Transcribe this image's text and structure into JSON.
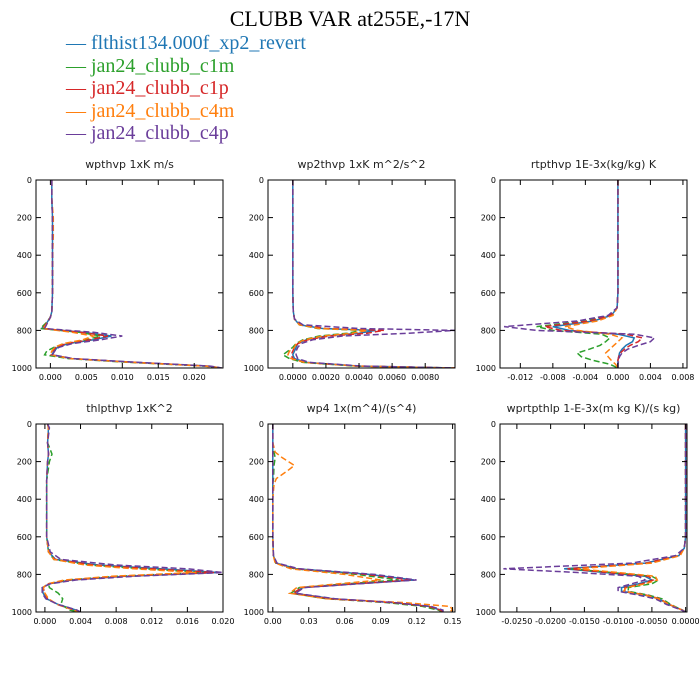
{
  "title": "CLUBB VAR at255E,-17N",
  "legend": [
    {
      "label": "flthist134.000f_xp2_revert",
      "color": "#1f77b4"
    },
    {
      "label": "jan24_clubb_c1m",
      "color": "#2ca02c"
    },
    {
      "label": "jan24_clubb_c1p",
      "color": "#d62728"
    },
    {
      "label": "jan24_clubb_c4m",
      "color": "#ff7f0e"
    },
    {
      "label": "jan24_clubb_c4p",
      "color": "#6a3d9a"
    }
  ],
  "chart_data": [
    {
      "type": "line",
      "title": "wpthvp   1xK m/s",
      "xlim": [
        -0.002,
        0.024
      ],
      "xticks": [
        0,
        0.005,
        0.01,
        0.015,
        0.02
      ],
      "xtick_labels": [
        "0.000",
        "0.005",
        "0.010",
        "0.015",
        "0.020"
      ],
      "ylim": [
        1000,
        0
      ],
      "yticks": [
        0,
        200,
        400,
        600,
        800,
        1000
      ],
      "y": [
        0,
        100,
        200,
        300,
        400,
        500,
        600,
        700,
        730,
        760,
        790,
        810,
        830,
        850,
        870,
        890,
        910,
        930,
        950,
        970,
        990,
        1000
      ],
      "series": [
        {
          "values": [
            0.0002,
            0.0002,
            0.0003,
            0.0003,
            0.0003,
            0.0003,
            0.0003,
            0.0002,
            0.0,
            -0.0005,
            -0.0012,
            0.0045,
            0.0085,
            0.006,
            0.0025,
            0.001,
            0.0005,
            0.0002,
            0.003,
            0.012,
            0.022,
            0.0238
          ]
        },
        {
          "values": [
            0.0002,
            0.0002,
            0.0003,
            0.0003,
            0.0003,
            0.0003,
            0.0003,
            0.0002,
            0.0,
            -0.0006,
            -0.0014,
            0.004,
            0.007,
            0.005,
            0.002,
            0.0005,
            -0.0005,
            -0.0008,
            0.0025,
            0.011,
            0.0215,
            0.0238
          ]
        },
        {
          "values": [
            0.0002,
            0.0002,
            0.0003,
            0.0003,
            0.0003,
            0.0003,
            0.0003,
            0.0002,
            0.0,
            -0.0005,
            -0.0011,
            0.0042,
            0.008,
            0.0055,
            0.0022,
            0.0008,
            0.0003,
            0.0001,
            0.003,
            0.0118,
            0.0218,
            0.0238
          ]
        },
        {
          "values": [
            0.0002,
            0.0002,
            0.0004,
            0.0004,
            0.0003,
            0.0003,
            0.0003,
            0.0002,
            0.0,
            -0.0004,
            -0.001,
            0.003,
            0.006,
            0.0045,
            0.0018,
            0.0006,
            0.0002,
            0.0,
            0.0028,
            0.0115,
            0.0215,
            0.0238
          ]
        },
        {
          "values": [
            0.0002,
            0.0002,
            0.0003,
            0.0003,
            0.0003,
            0.0003,
            0.0003,
            0.0002,
            0.0,
            -0.0004,
            -0.0008,
            0.006,
            0.01,
            0.007,
            0.003,
            0.0012,
            0.0006,
            0.0003,
            0.0032,
            0.0122,
            0.0222,
            0.0238
          ]
        }
      ]
    },
    {
      "type": "line",
      "title": "wp2thvp   1xK m^2/s^2",
      "xlim": [
        -0.0015,
        0.0098
      ],
      "xticks": [
        0,
        0.002,
        0.004,
        0.006,
        0.008
      ],
      "xtick_labels": [
        "0.0000",
        "0.0020",
        "0.0040",
        "0.0060",
        "0.0080"
      ],
      "ylim": [
        1000,
        0
      ],
      "yticks": [
        0,
        200,
        400,
        600,
        800,
        1000
      ],
      "y": [
        0,
        100,
        200,
        300,
        400,
        500,
        600,
        700,
        740,
        770,
        790,
        800,
        815,
        830,
        850,
        870,
        890,
        910,
        930,
        950,
        970,
        990,
        1000
      ],
      "series": [
        {
          "values": [
            0,
            0,
            0,
            0,
            0,
            0,
            0,
            3e-05,
            0.0001,
            0.0004,
            0.0018,
            0.005,
            0.004,
            0.002,
            0.0008,
            0.0003,
            0.0002,
            0.0001,
            0.0,
            0.0001,
            0.0008,
            0.004,
            0.0098
          ]
        },
        {
          "values": [
            0,
            0,
            0,
            0,
            0,
            0,
            0,
            3e-05,
            0.0001,
            0.0004,
            0.0015,
            0.0042,
            0.0033,
            0.0016,
            0.0006,
            0.0002,
            0.0,
            -0.0003,
            -0.0006,
            -0.0002,
            0.0006,
            0.0038,
            0.0098
          ]
        },
        {
          "values": [
            0,
            0,
            0,
            0,
            0,
            0,
            0,
            3e-05,
            0.0001,
            0.0005,
            0.002,
            0.0055,
            0.0045,
            0.0022,
            0.0009,
            0.0003,
            0.0001,
            0.0,
            -0.0001,
            0.0,
            0.0007,
            0.004,
            0.0098
          ]
        },
        {
          "values": [
            0,
            0,
            0,
            0,
            0,
            0,
            0,
            3e-05,
            0.0001,
            0.0004,
            0.0016,
            0.0045,
            0.0036,
            0.0018,
            0.0007,
            0.0002,
            0.0001,
            -0.0002,
            -0.0003,
            -0.0001,
            0.0007,
            0.0039,
            0.0098
          ]
        },
        {
          "values": [
            0,
            0,
            0,
            0,
            0,
            0,
            0,
            3e-05,
            0.0001,
            0.0006,
            0.004,
            0.0098,
            0.007,
            0.003,
            0.0012,
            0.0005,
            0.0003,
            0.0002,
            0.0002,
            0.0003,
            0.001,
            0.0042,
            0.0098
          ]
        }
      ]
    },
    {
      "type": "line",
      "title": "rtpthvp   1E-3x(kg/kg) K",
      "xlim": [
        -0.0145,
        0.0085
      ],
      "xticks": [
        -0.012,
        -0.008,
        -0.004,
        0,
        0.004,
        0.008
      ],
      "xtick_labels": [
        "-0.012",
        "-0.008",
        "-0.004",
        "0.000",
        "0.004",
        "0.008"
      ],
      "ylim": [
        1000,
        0
      ],
      "yticks": [
        0,
        200,
        400,
        600,
        800,
        1000
      ],
      "y": [
        0,
        100,
        200,
        300,
        400,
        500,
        600,
        680,
        720,
        750,
        780,
        800,
        820,
        840,
        860,
        880,
        900,
        920,
        940,
        960,
        980,
        1000
      ],
      "series": [
        {
          "values": [
            0,
            0,
            0,
            0,
            0,
            0,
            0,
            -0.0001,
            -0.0008,
            -0.003,
            -0.008,
            -0.006,
            0.0,
            0.002,
            0.0018,
            0.001,
            0.0005,
            0.0002,
            0.0001,
            0.0,
            0.0,
            0.0
          ]
        },
        {
          "values": [
            0,
            0,
            0,
            0,
            0,
            0,
            0,
            -0.0001,
            -0.001,
            -0.004,
            -0.01,
            -0.008,
            -0.002,
            -0.001,
            -0.0015,
            -0.0022,
            -0.0035,
            -0.005,
            -0.0045,
            -0.003,
            -0.001,
            0.0
          ]
        },
        {
          "values": [
            0,
            0,
            0,
            0,
            0,
            0,
            0,
            -0.0001,
            -0.0009,
            -0.0035,
            -0.009,
            -0.007,
            0.001,
            0.003,
            0.0025,
            0.0015,
            0.0008,
            0.0003,
            0.0001,
            0.0,
            0.0,
            0.0
          ]
        },
        {
          "values": [
            0,
            0,
            0,
            0,
            0,
            0,
            0,
            -0.0001,
            -0.0006,
            -0.0025,
            -0.0065,
            -0.005,
            -0.001,
            0.0005,
            0.0,
            -0.0005,
            -0.001,
            -0.0015,
            -0.0012,
            -0.0008,
            -0.0003,
            0.0
          ]
        },
        {
          "values": [
            0,
            0,
            0,
            0,
            0,
            0,
            0,
            -0.0001,
            -0.0012,
            -0.005,
            -0.014,
            -0.01,
            0.002,
            0.0045,
            0.004,
            0.0025,
            0.0012,
            0.0005,
            0.0002,
            0.0001,
            0.0,
            0.0
          ]
        }
      ]
    },
    {
      "type": "line",
      "title": "thlpthvp   1xK^2",
      "xlim": [
        -0.001,
        0.02
      ],
      "xticks": [
        0,
        0.004,
        0.008,
        0.012,
        0.016,
        0.02
      ],
      "xtick_labels": [
        "0.000",
        "0.004",
        "0.008",
        "0.012",
        "0.016",
        "0.020"
      ],
      "ylim": [
        1000,
        0
      ],
      "yticks": [
        0,
        200,
        400,
        600,
        800,
        1000
      ],
      "y": [
        0,
        20,
        100,
        160,
        200,
        300,
        400,
        500,
        600,
        680,
        720,
        750,
        770,
        790,
        810,
        830,
        850,
        870,
        900,
        930,
        960,
        990,
        1000
      ],
      "series": [
        {
          "values": [
            0.0003,
            0.0004,
            0.0003,
            0.0004,
            0.0003,
            0.0002,
            0.0002,
            0.0002,
            0.0002,
            0.0004,
            0.0012,
            0.006,
            0.013,
            0.0195,
            0.009,
            0.003,
            0.0005,
            -0.0003,
            -0.0002,
            0.0002,
            0.0015,
            0.0035,
            0.004
          ]
        },
        {
          "values": [
            0.0003,
            0.0004,
            0.0003,
            0.0008,
            0.0005,
            0.0002,
            0.0002,
            0.0002,
            0.0002,
            0.0004,
            0.001,
            0.005,
            0.011,
            0.018,
            0.008,
            0.0025,
            0.0004,
            0.0005,
            0.0015,
            0.002,
            0.0018,
            0.0028,
            0.004
          ]
        },
        {
          "values": [
            0.0003,
            0.0004,
            0.0003,
            0.0004,
            0.0003,
            0.0002,
            0.0002,
            0.0002,
            0.0002,
            0.0004,
            0.0011,
            0.0055,
            0.012,
            0.019,
            0.0085,
            0.0028,
            0.0004,
            -0.0002,
            0.0,
            0.0003,
            0.0014,
            0.0033,
            0.004
          ]
        },
        {
          "values": [
            0.0003,
            0.0004,
            0.0003,
            0.0004,
            0.0003,
            0.0002,
            0.0002,
            0.0002,
            0.0002,
            0.0004,
            0.001,
            0.0045,
            0.01,
            0.017,
            0.0075,
            0.0022,
            0.0003,
            -0.0002,
            0.0,
            0.0004,
            0.0014,
            0.0032,
            0.004
          ]
        },
        {
          "values": [
            0.0003,
            0.0005,
            0.0003,
            0.0004,
            0.0003,
            0.0002,
            0.0002,
            0.0002,
            0.0002,
            0.0006,
            0.0018,
            0.008,
            0.016,
            0.02,
            0.01,
            0.0035,
            0.0006,
            -0.0003,
            -0.0003,
            0.0001,
            0.0015,
            0.0036,
            0.004
          ]
        }
      ]
    },
    {
      "type": "line",
      "title": "wp4   1x(m^4)/(s^4)",
      "xlim": [
        -0.004,
        0.152
      ],
      "xticks": [
        0,
        0.03,
        0.06,
        0.09,
        0.12,
        0.15
      ],
      "xtick_labels": [
        "0.00",
        "0.03",
        "0.06",
        "0.09",
        "0.12",
        "0.15"
      ],
      "ylim": [
        1000,
        0
      ],
      "yticks": [
        0,
        200,
        400,
        600,
        800,
        1000
      ],
      "y": [
        0,
        100,
        150,
        180,
        220,
        250,
        290,
        320,
        400,
        500,
        600,
        700,
        740,
        770,
        800,
        830,
        850,
        870,
        900,
        930,
        950,
        970,
        990,
        1000
      ],
      "series": [
        {
          "values": [
            0,
            0,
            0,
            0,
            0,
            0,
            0,
            0,
            0,
            0,
            0,
            0.0005,
            0.003,
            0.02,
            0.08,
            0.118,
            0.07,
            0.025,
            0.018,
            0.05,
            0.1,
            0.13,
            0.14,
            0.142
          ]
        },
        {
          "values": [
            0,
            0,
            0.001,
            0.002,
            0.001,
            0.0008,
            0.0006,
            0,
            0,
            0,
            0,
            0.0004,
            0.0025,
            0.018,
            0.07,
            0.105,
            0.062,
            0.022,
            0.015,
            0.045,
            0.095,
            0.125,
            0.138,
            0.142
          ]
        },
        {
          "values": [
            0,
            0,
            0,
            0,
            0,
            0,
            0,
            0,
            0,
            0,
            0,
            0.0005,
            0.003,
            0.02,
            0.078,
            0.115,
            0.068,
            0.024,
            0.017,
            0.048,
            0.1,
            0.13,
            0.14,
            0.142
          ]
        },
        {
          "values": [
            0,
            0,
            0.002,
            0.008,
            0.018,
            0.012,
            0.003,
            0.001,
            0,
            0,
            0,
            0.0004,
            0.002,
            0.015,
            0.06,
            0.09,
            0.055,
            0.02,
            0.014,
            0.045,
            0.11,
            0.148,
            0.15,
            0.146
          ]
        },
        {
          "values": [
            0,
            0,
            0,
            0,
            0,
            0,
            0,
            0,
            0,
            0,
            0,
            0.0006,
            0.0035,
            0.022,
            0.085,
            0.12,
            0.072,
            0.026,
            0.019,
            0.052,
            0.102,
            0.132,
            0.142,
            0.142
          ]
        }
      ]
    },
    {
      "type": "line",
      "title": "wprtpthlp   1-E-3x(m kg K)/(s kg)",
      "xlim": [
        -0.0275,
        0.0002
      ],
      "xticks": [
        -0.025,
        -0.02,
        -0.015,
        -0.01,
        -0.005,
        0
      ],
      "xtick_labels": [
        "-0.0250",
        "-0.0200",
        "-0.0150",
        "-0.0100",
        "-0.0050",
        "0.0000"
      ],
      "ylim": [
        1000,
        0
      ],
      "yticks": [
        0,
        200,
        400,
        600,
        800,
        1000
      ],
      "y": [
        0,
        100,
        200,
        300,
        400,
        500,
        600,
        660,
        700,
        740,
        770,
        790,
        810,
        830,
        850,
        870,
        890,
        910,
        930,
        960,
        990,
        1000
      ],
      "series": [
        {
          "values": [
            0,
            0,
            0,
            0,
            0,
            0,
            0,
            -0.0002,
            -0.001,
            -0.006,
            -0.018,
            -0.012,
            -0.006,
            -0.005,
            -0.007,
            -0.0095,
            -0.0095,
            -0.006,
            -0.004,
            -0.0025,
            -0.0005,
            0.0
          ]
        },
        {
          "values": [
            0,
            0,
            0,
            0,
            0,
            0,
            0,
            -0.0002,
            -0.001,
            -0.0055,
            -0.017,
            -0.011,
            -0.005,
            -0.004,
            -0.005,
            -0.0085,
            -0.0085,
            -0.0055,
            -0.0035,
            -0.0022,
            -0.0005,
            0.0
          ]
        },
        {
          "values": [
            0,
            0,
            0,
            0,
            0,
            0,
            0,
            -0.0002,
            -0.001,
            -0.0058,
            -0.0175,
            -0.0115,
            -0.0055,
            -0.0048,
            -0.0065,
            -0.009,
            -0.009,
            -0.0058,
            -0.0038,
            -0.0024,
            -0.0005,
            0.0
          ]
        },
        {
          "values": [
            0,
            0,
            0,
            0,
            0,
            0,
            0,
            -0.0002,
            -0.0008,
            -0.005,
            -0.016,
            -0.01,
            -0.0045,
            -0.0042,
            -0.006,
            -0.0088,
            -0.0092,
            -0.006,
            -0.004,
            -0.0024,
            -0.0005,
            0.0
          ]
        },
        {
          "values": [
            0,
            0,
            0,
            0,
            0,
            0,
            0,
            -0.0002,
            -0.0015,
            -0.008,
            -0.027,
            -0.016,
            -0.007,
            -0.006,
            -0.008,
            -0.01,
            -0.01,
            -0.007,
            -0.0045,
            -0.0028,
            -0.0006,
            0.0
          ]
        }
      ]
    }
  ]
}
